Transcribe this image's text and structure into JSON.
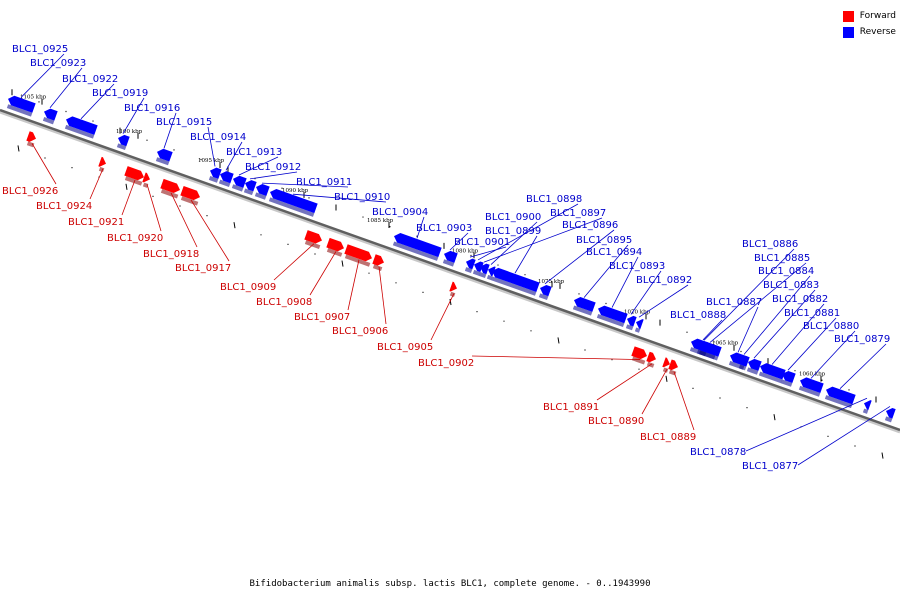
{
  "caption": "Bifidobacterium animalis subsp. lactis BLC1, complete genome. - 0..1943990",
  "colors": {
    "forward": "#ff0000",
    "reverse": "#0000ff",
    "forward_text": "#cc0000",
    "reverse_text": "#0000cc"
  },
  "legend": [
    {
      "label": "Forward",
      "strand": "forward"
    },
    {
      "label": "Reverse",
      "strand": "reverse"
    }
  ],
  "ticks": [
    "1105 kbp",
    "1100 kbp",
    "1095 kbp",
    "1090 kbp",
    "1085 kbp",
    "1080 kbp",
    "1075 kbp",
    "1070 kbp",
    "1065 kbp",
    "1060 kbp"
  ],
  "genes": [
    {
      "label": "BLC1_0925",
      "strand": "reverse"
    },
    {
      "label": "BLC1_0923",
      "strand": "reverse"
    },
    {
      "label": "BLC1_0922",
      "strand": "reverse"
    },
    {
      "label": "BLC1_0919",
      "strand": "reverse"
    },
    {
      "label": "BLC1_0916",
      "strand": "reverse"
    },
    {
      "label": "BLC1_0915",
      "strand": "reverse"
    },
    {
      "label": "BLC1_0914",
      "strand": "reverse"
    },
    {
      "label": "BLC1_0913",
      "strand": "reverse"
    },
    {
      "label": "BLC1_0912",
      "strand": "reverse"
    },
    {
      "label": "BLC1_0911",
      "strand": "reverse"
    },
    {
      "label": "BLC1_0910",
      "strand": "reverse"
    },
    {
      "label": "BLC1_0904",
      "strand": "reverse"
    },
    {
      "label": "BLC1_0903",
      "strand": "reverse"
    },
    {
      "label": "BLC1_0898",
      "strand": "reverse"
    },
    {
      "label": "BLC1_0897",
      "strand": "reverse"
    },
    {
      "label": "BLC1_0900",
      "strand": "reverse"
    },
    {
      "label": "BLC1_0899",
      "strand": "reverse"
    },
    {
      "label": "BLC1_0896",
      "strand": "reverse"
    },
    {
      "label": "BLC1_0901",
      "strand": "reverse"
    },
    {
      "label": "BLC1_0895",
      "strand": "reverse"
    },
    {
      "label": "BLC1_0894",
      "strand": "reverse"
    },
    {
      "label": "BLC1_0893",
      "strand": "reverse"
    },
    {
      "label": "BLC1_0892",
      "strand": "reverse"
    },
    {
      "label": "BLC1_0886",
      "strand": "reverse"
    },
    {
      "label": "BLC1_0885",
      "strand": "reverse"
    },
    {
      "label": "BLC1_0884",
      "strand": "reverse"
    },
    {
      "label": "BLC1_0883",
      "strand": "reverse"
    },
    {
      "label": "BLC1_0887",
      "strand": "reverse"
    },
    {
      "label": "BLC1_0882",
      "strand": "reverse"
    },
    {
      "label": "BLC1_0888",
      "strand": "reverse"
    },
    {
      "label": "BLC1_0881",
      "strand": "reverse"
    },
    {
      "label": "BLC1_0880",
      "strand": "reverse"
    },
    {
      "label": "BLC1_0879",
      "strand": "reverse"
    },
    {
      "label": "BLC1_0878",
      "strand": "reverse"
    },
    {
      "label": "BLC1_0877",
      "strand": "reverse"
    },
    {
      "label": "BLC1_0926",
      "strand": "forward"
    },
    {
      "label": "BLC1_0924",
      "strand": "forward"
    },
    {
      "label": "BLC1_0921",
      "strand": "forward"
    },
    {
      "label": "BLC1_0920",
      "strand": "forward"
    },
    {
      "label": "BLC1_0918",
      "strand": "forward"
    },
    {
      "label": "BLC1_0917",
      "strand": "forward"
    },
    {
      "label": "BLC1_0909",
      "strand": "forward"
    },
    {
      "label": "BLC1_0908",
      "strand": "forward"
    },
    {
      "label": "BLC1_0907",
      "strand": "forward"
    },
    {
      "label": "BLC1_0906",
      "strand": "forward"
    },
    {
      "label": "BLC1_0905",
      "strand": "forward"
    },
    {
      "label": "BLC1_0902",
      "strand": "forward"
    },
    {
      "label": "BLC1_0891",
      "strand": "forward"
    },
    {
      "label": "BLC1_0890",
      "strand": "forward"
    },
    {
      "label": "BLC1_0889",
      "strand": "forward"
    }
  ]
}
